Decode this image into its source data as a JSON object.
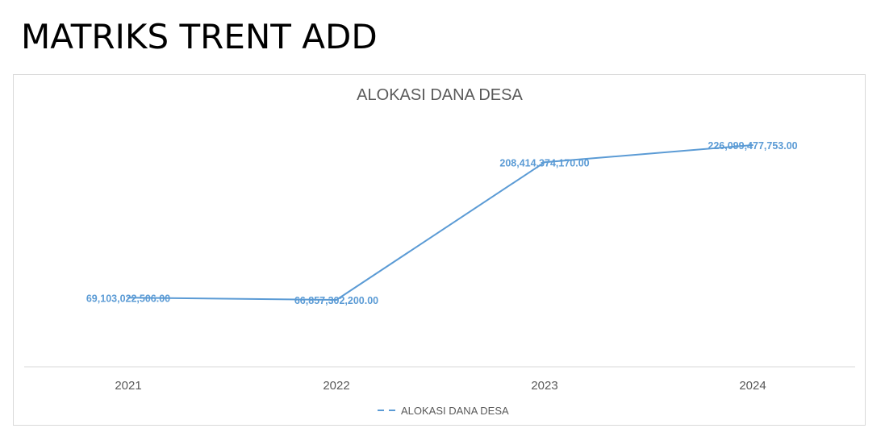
{
  "slide": {
    "title": "MATRIKS TRENT ADD"
  },
  "chart_data": {
    "type": "line",
    "title": "ALOKASI DANA DESA",
    "categories": [
      "2021",
      "2022",
      "2023",
      "2024"
    ],
    "series": [
      {
        "name": "ALOKASI DANA DESA",
        "values": [
          69103022506.0,
          66857302200.0,
          208414374170.0,
          226099477753.0
        ],
        "labels": [
          "69,103,022,506.00",
          "66,857,302,200.00",
          "208,414,374,170.00",
          "226,099,477,753.00"
        ],
        "color": "#5b9bd5"
      }
    ],
    "xlabel": "",
    "ylabel": "",
    "y_axis_visible": false,
    "gridlines": false,
    "legend_position": "bottom",
    "colors": {
      "title": "#595959",
      "axis_labels": "#595959",
      "axis_line": "#d9d9d9",
      "data_labels": "#5b9bd5"
    }
  }
}
